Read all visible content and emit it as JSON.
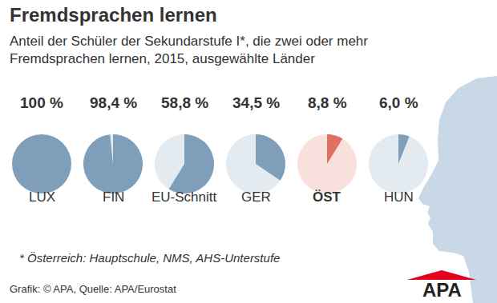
{
  "chart_data": {
    "type": "pie",
    "title": "Fremdsprachen lernen",
    "subtitle": "Anteil der Schüler der Sekundarstufe I*, die zwei oder mehr\nFremdsprachen lernen, 2015, ausgewählte Länder",
    "categories": [
      "LUX",
      "FIN",
      "EU-Schnitt",
      "GER",
      "ÖST",
      "HUN"
    ],
    "values": [
      100,
      98.4,
      58.8,
      34.5,
      8.8,
      6.0
    ],
    "value_labels": [
      "100 %",
      "98,4 %",
      "58,8 %",
      "34,5 %",
      "8,8 %",
      "6,0 %"
    ],
    "colors": [
      "#7f9eba",
      "#7f9eba",
      "#7f9eba",
      "#7f9eba",
      "#e0705f",
      "#7f9eba"
    ],
    "data_labels": true,
    "footnote": "* Österreich: Hauptschule, NMS, AHS-Unterstufe",
    "source": "Grafik: © APA, Quelle: APA/Eurostat",
    "logo": "APA"
  }
}
